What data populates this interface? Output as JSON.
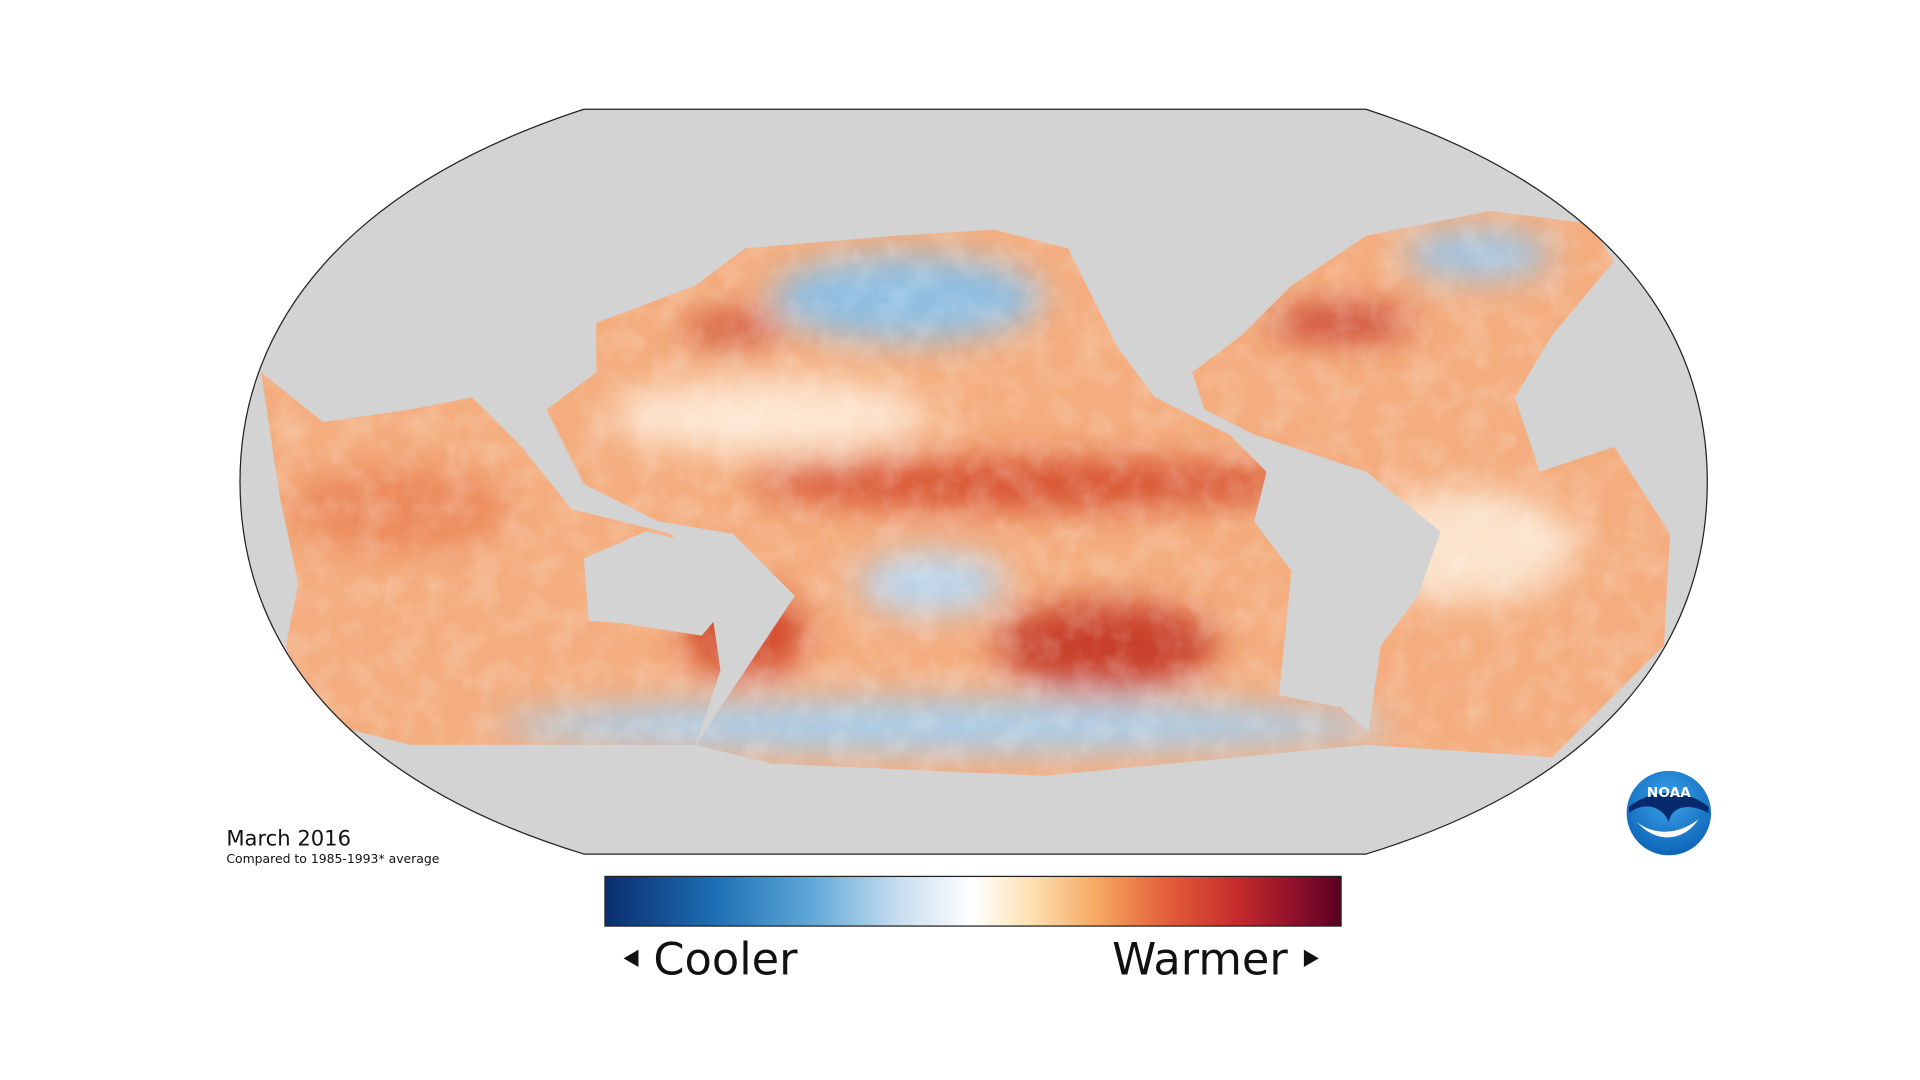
{
  "map": {
    "date": "March 2016",
    "baseline": "Compared to 1985-1993* average"
  },
  "legend": {
    "low": "Cooler",
    "high": "Warmer"
  },
  "logo": "NOAA"
}
